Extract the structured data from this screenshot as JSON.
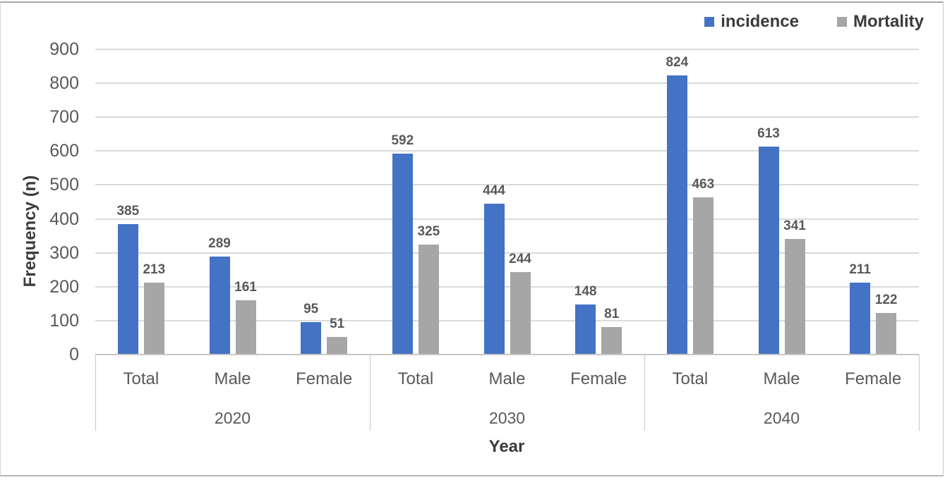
{
  "chart_data": {
    "type": "bar",
    "title": "",
    "ylabel": "Frequency (n)",
    "xlabel": "Year",
    "ylim": [
      0,
      900
    ],
    "y_ticks": [
      0,
      100,
      200,
      300,
      400,
      500,
      600,
      700,
      800,
      900
    ],
    "grid": true,
    "data_labels": true,
    "legend_position": "top-right",
    "group_labels": [
      "2020",
      "2030",
      "2040"
    ],
    "categories": [
      "Total",
      "Male",
      "Female"
    ],
    "series": [
      {
        "name": "incidence",
        "color": "#4472C4",
        "values": [
          [
            385,
            289,
            95
          ],
          [
            592,
            444,
            148
          ],
          [
            824,
            613,
            211
          ]
        ]
      },
      {
        "name": "Mortality",
        "color": "#A6A6A6",
        "values": [
          [
            213,
            161,
            51
          ],
          [
            325,
            244,
            81
          ],
          [
            463,
            341,
            122
          ]
        ]
      }
    ],
    "text_colors": {
      "axis_labels": "#595959",
      "titles_and_legend": "#3b3b3b"
    },
    "gridline_color": "#dadada"
  }
}
